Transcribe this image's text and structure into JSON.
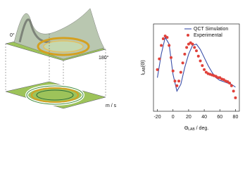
{
  "surface_panel": {
    "labels": [
      "0°",
      "180°",
      "m / s"
    ]
  },
  "chart_data": {
    "type": "line",
    "xlabel": "Θ",
    "xlabel_sub": "LAB",
    "xlabel_unit": " / deg.",
    "ylabel": "I",
    "ylabel_sub": "LAB",
    "ylabel_arg": "(Θ)",
    "xlim": [
      -25,
      85
    ],
    "xticks": [
      -20,
      0,
      20,
      40,
      60,
      80
    ],
    "ylim": [
      0,
      1.3
    ],
    "legend": "top-right",
    "series": [
      {
        "name": "QCT Simulation",
        "color": "#3a4fa8",
        "style": "line",
        "x": [
          -20,
          -15,
          -10,
          -5,
          0,
          5,
          10,
          15,
          20,
          25,
          30,
          35,
          40,
          45,
          50,
          55,
          60,
          65,
          70,
          75,
          80
        ],
        "values": [
          0.5,
          0.85,
          1.1,
          1.0,
          0.55,
          0.3,
          0.4,
          0.65,
          0.85,
          0.98,
          1.0,
          0.92,
          0.8,
          0.68,
          0.58,
          0.5,
          0.46,
          0.44,
          0.42,
          0.4,
          0.36
        ]
      },
      {
        "name": "Experimental",
        "color": "#e0413a",
        "style": "markers",
        "x": [
          -20,
          -17.5,
          -15,
          -12.5,
          -10,
          -7.5,
          -5,
          -2.5,
          0,
          2.5,
          5,
          7.5,
          10,
          12.5,
          15,
          17.5,
          20,
          22.5,
          25,
          27.5,
          30,
          32.5,
          35,
          37.5,
          40,
          42.5,
          45,
          47.5,
          50,
          52.5,
          55,
          57.5,
          60,
          62.5,
          65,
          67.5,
          70,
          72.5,
          75,
          77.5,
          80
        ],
        "values": [
          0.62,
          0.78,
          0.98,
          1.08,
          1.12,
          1.1,
          0.98,
          0.8,
          0.6,
          0.45,
          0.38,
          0.45,
          0.58,
          0.72,
          0.85,
          0.95,
          1.0,
          1.02,
          1.0,
          0.95,
          0.9,
          0.82,
          0.75,
          0.68,
          0.62,
          0.58,
          0.56,
          0.55,
          0.54,
          0.53,
          0.52,
          0.5,
          0.5,
          0.48,
          0.47,
          0.45,
          0.44,
          0.42,
          0.38,
          0.3,
          0.2
        ]
      }
    ]
  }
}
